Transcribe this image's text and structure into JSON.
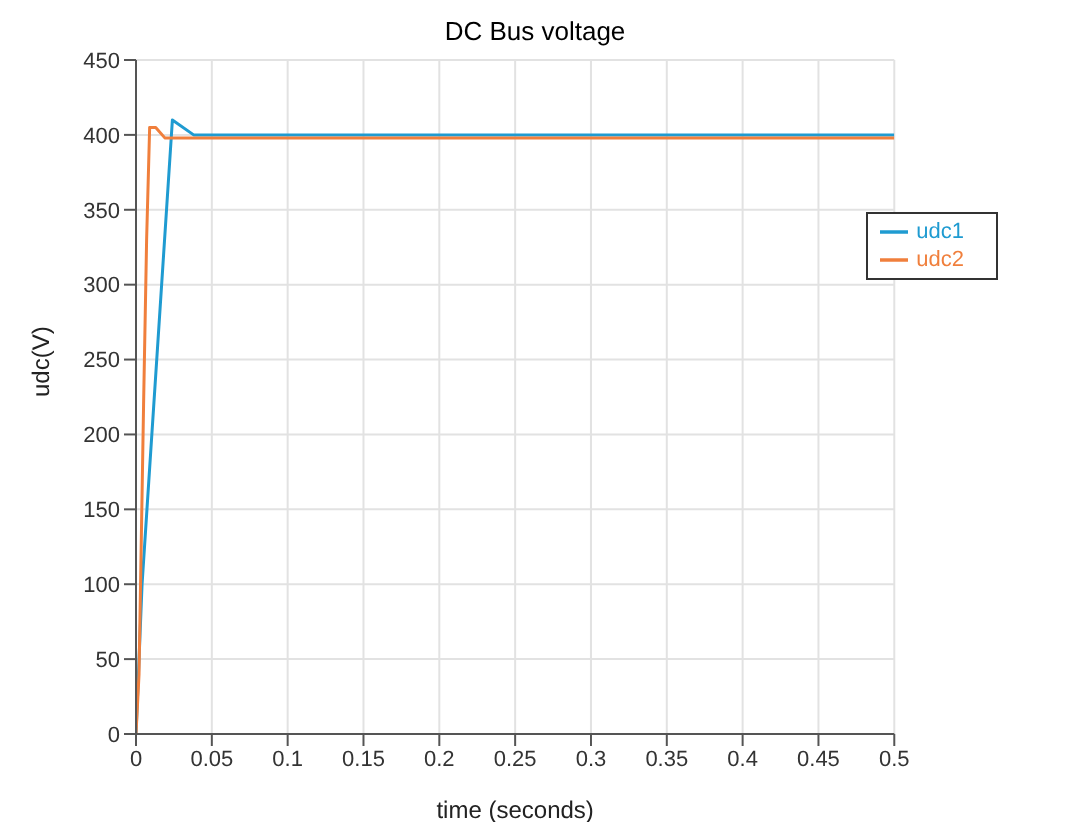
{
  "chart_data": {
    "type": "line",
    "title": "DC Bus voltage",
    "xlabel": "time (seconds)",
    "ylabel": "udc(V)",
    "xlim": [
      0,
      0.5
    ],
    "xticks": [
      0,
      0.05,
      0.1,
      0.15,
      0.2,
      0.25,
      0.3,
      0.35,
      0.4,
      0.45,
      0.5
    ],
    "ylim": [
      0,
      450
    ],
    "yticks": [
      0,
      50,
      100,
      150,
      200,
      250,
      300,
      350,
      400,
      450
    ],
    "grid": true,
    "legend": "top right",
    "marker": "none",
    "line_style": "solid",
    "series": [
      {
        "name": "udc1",
        "color": "#1f9bd1",
        "x": [
          0,
          0.004,
          0.024,
          0.038,
          0.5
        ],
        "values": [
          0,
          100,
          410,
          400,
          400
        ]
      },
      {
        "name": "udc2",
        "color": "#f07f3c",
        "x": [
          0,
          0.002,
          0.005,
          0.007,
          0.009,
          0.013,
          0.019,
          0.5
        ],
        "values": [
          0,
          40,
          220,
          330,
          405,
          405,
          398,
          398
        ]
      }
    ]
  }
}
